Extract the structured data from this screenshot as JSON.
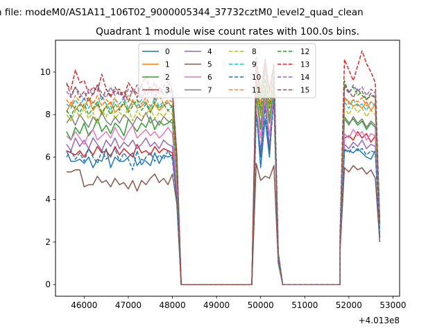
{
  "figure": {
    "suptitle": "n file: modeM0/AS1A11_106T02_9000005344_37732cztM0_level2_quad_clean"
  },
  "chart_data": {
    "type": "line",
    "title": "Quadrant 1 module wise count rates with 100.0s bins.",
    "xlabel": "",
    "ylabel": "",
    "x_offset_label": "+4.013e8",
    "xlim": [
      45350,
      53150
    ],
    "ylim": [
      -0.55,
      11.5
    ],
    "x_ticks": [
      46000,
      47000,
      48000,
      49000,
      50000,
      51000,
      52000,
      53000
    ],
    "y_ticks": [
      0,
      2,
      4,
      6,
      8,
      10
    ],
    "grid": false,
    "legend": {
      "placement": "top-center",
      "ncol": 4
    },
    "segments": [
      {
        "x0": 45600,
        "n": 26
      },
      {
        "x0": 48200,
        "n": 22
      },
      {
        "x0": 50400,
        "n": 15
      },
      {
        "x0": 51800,
        "n": 10
      }
    ],
    "x_step": 100,
    "series": [
      {
        "name": "0",
        "color": "#1f77b4",
        "dash": "solid",
        "values": [
          6.3,
          5.8,
          5.8,
          5.9,
          5.7,
          6.0,
          5.5,
          5.9,
          5.8,
          6.4,
          5.5,
          6.0,
          5.8,
          5.8,
          6.0,
          6.2,
          5.6,
          5.9,
          5.8,
          5.6,
          6.2,
          5.7,
          6.1,
          6.0,
          6.1,
          4.0,
          0,
          0,
          0,
          0,
          0,
          0,
          0,
          0,
          0,
          0,
          0,
          0,
          0,
          0,
          0,
          0,
          0,
          8.4,
          5.5,
          7.8,
          6.0,
          9.2,
          1.2,
          0,
          0,
          0,
          0,
          0,
          0,
          0,
          0,
          0,
          0,
          0,
          0,
          0,
          0,
          1.8,
          6.3,
          6.3,
          6.2,
          6.4,
          6.2,
          6.0,
          5.9,
          6.3,
          2.3
        ]
      },
      {
        "name": "1",
        "color": "#ff7f0e",
        "dash": "solid",
        "values": [
          8.1,
          8.6,
          8.2,
          8.5,
          8.3,
          8.8,
          8.2,
          8.5,
          8.0,
          8.4,
          8.6,
          8.1,
          8.3,
          8.5,
          8.2,
          8.7,
          8.3,
          8.4,
          8.6,
          8.1,
          8.5,
          8.2,
          8.4,
          8.6,
          8.3,
          5.5,
          0,
          0,
          0,
          0,
          0,
          0,
          0,
          0,
          0,
          0,
          0,
          0,
          0,
          0,
          0,
          0,
          0,
          9.8,
          8.1,
          10.2,
          8.4,
          10.0,
          1.4,
          0,
          0,
          0,
          0,
          0,
          0,
          0,
          0,
          0,
          0,
          0,
          0,
          0,
          0,
          2.2,
          8.8,
          8.6,
          8.4,
          8.5,
          8.3,
          8.6,
          8.2,
          8.5,
          2.9
        ]
      },
      {
        "name": "2",
        "color": "#2ca02c",
        "dash": "solid",
        "values": [
          7.2,
          6.8,
          7.4,
          7.1,
          7.6,
          7.0,
          7.3,
          7.8,
          7.2,
          7.5,
          7.1,
          7.6,
          7.4,
          7.0,
          7.8,
          7.5,
          7.2,
          7.6,
          7.4,
          7.9,
          7.3,
          7.7,
          7.5,
          7.6,
          7.8,
          5.0,
          0,
          0,
          0,
          0,
          0,
          0,
          0,
          0,
          0,
          0,
          0,
          0,
          0,
          0,
          0,
          0,
          0,
          8.9,
          7.3,
          9.1,
          7.6,
          9.3,
          1.3,
          0,
          0,
          0,
          0,
          0,
          0,
          0,
          0,
          0,
          0,
          0,
          0,
          0,
          0,
          2.0,
          7.9,
          7.6,
          7.8,
          7.5,
          7.7,
          7.3,
          7.6,
          7.4,
          2.5
        ]
      },
      {
        "name": "3",
        "color": "#d62728",
        "dash": "solid",
        "values": [
          6.3,
          6.2,
          6.1,
          6.3,
          6.0,
          6.4,
          6.1,
          6.5,
          6.2,
          6.3,
          6.0,
          6.5,
          6.1,
          6.4,
          6.2,
          6.0,
          6.6,
          6.2,
          6.3,
          6.1,
          6.5,
          6.2,
          6.4,
          6.3,
          6.2,
          4.1,
          0,
          0,
          0,
          0,
          0,
          0,
          0,
          0,
          0,
          0,
          0,
          0,
          0,
          0,
          0,
          0,
          0,
          8.2,
          6.1,
          8.6,
          6.3,
          9.0,
          1.2,
          0,
          0,
          0,
          0,
          0,
          0,
          0,
          0,
          0,
          0,
          0,
          0,
          0,
          0,
          1.9,
          6.9,
          7.0,
          6.8,
          7.2,
          6.9,
          7.1,
          6.7,
          7.0,
          2.2
        ]
      },
      {
        "name": "4",
        "color": "#9467bd",
        "dash": "solid",
        "values": [
          6.6,
          6.3,
          6.9,
          6.5,
          6.8,
          6.4,
          6.9,
          6.6,
          6.3,
          6.8,
          6.5,
          6.9,
          6.4,
          6.7,
          6.5,
          6.8,
          6.4,
          6.6,
          6.9,
          6.5,
          6.7,
          6.4,
          6.8,
          6.6,
          6.5,
          4.3,
          0,
          0,
          0,
          0,
          0,
          0,
          0,
          0,
          0,
          0,
          0,
          0,
          0,
          0,
          0,
          0,
          0,
          8.1,
          6.3,
          8.5,
          6.5,
          8.8,
          1.1,
          0,
          0,
          0,
          0,
          0,
          0,
          0,
          0,
          0,
          0,
          0,
          0,
          0,
          0,
          1.8,
          6.6,
          6.4,
          6.7,
          6.5,
          6.8,
          6.4,
          6.6,
          6.5,
          2.3
        ]
      },
      {
        "name": "5",
        "color": "#8c564b",
        "dash": "solid",
        "values": [
          5.3,
          5.3,
          5.4,
          5.4,
          4.6,
          4.7,
          4.7,
          5.1,
          4.8,
          4.9,
          4.6,
          5.0,
          4.7,
          4.8,
          4.5,
          4.9,
          4.4,
          4.9,
          4.7,
          5.0,
          5.2,
          4.8,
          5.0,
          4.7,
          5.2,
          3.8,
          0,
          0,
          0,
          0,
          0,
          0,
          0,
          0,
          0,
          0,
          0,
          0,
          0,
          0,
          0,
          0,
          0,
          5.7,
          4.9,
          5.1,
          5.0,
          5.6,
          1.0,
          0,
          0,
          0,
          0,
          0,
          0,
          0,
          0,
          0,
          0,
          0,
          0,
          0,
          0,
          1.6,
          5.5,
          5.3,
          5.6,
          5.4,
          5.5,
          5.2,
          5.4,
          5.0,
          2.0
        ]
      },
      {
        "name": "6",
        "color": "#e377c2",
        "dash": "solid",
        "values": [
          7.0,
          6.8,
          7.2,
          6.9,
          6.6,
          7.1,
          7.3,
          6.8,
          7.0,
          7.2,
          6.9,
          7.4,
          7.0,
          6.8,
          7.2,
          7.5,
          6.9,
          7.1,
          7.3,
          7.0,
          7.2,
          6.9,
          7.1,
          7.4,
          7.1,
          4.7,
          0,
          0,
          0,
          0,
          0,
          0,
          0,
          0,
          0,
          0,
          0,
          0,
          0,
          0,
          0,
          0,
          0,
          8.3,
          6.9,
          8.8,
          7.0,
          9.0,
          1.2,
          0,
          0,
          0,
          0,
          0,
          0,
          0,
          0,
          0,
          0,
          0,
          0,
          0,
          0,
          1.9,
          7.1,
          6.9,
          7.3,
          7.0,
          7.2,
          6.8,
          7.1,
          7.0,
          2.4
        ]
      },
      {
        "name": "7",
        "color": "#7f7f7f",
        "dash": "solid",
        "values": [
          7.6,
          7.9,
          7.5,
          8.0,
          7.7,
          7.4,
          7.9,
          7.6,
          8.1,
          7.7,
          7.5,
          7.9,
          7.6,
          8.0,
          7.8,
          7.5,
          7.9,
          7.7,
          8.1,
          7.6,
          7.8,
          7.5,
          7.9,
          7.7,
          7.6,
          5.1,
          0,
          0,
          0,
          0,
          0,
          0,
          0,
          0,
          0,
          0,
          0,
          0,
          0,
          0,
          0,
          0,
          0,
          9.0,
          7.5,
          9.3,
          7.8,
          9.4,
          1.3,
          0,
          0,
          0,
          0,
          0,
          0,
          0,
          0,
          0,
          0,
          0,
          0,
          0,
          0,
          2.1,
          7.8,
          7.5,
          7.9,
          7.6,
          7.8,
          7.4,
          7.7,
          7.5,
          2.6
        ]
      },
      {
        "name": "8",
        "color": "#bcbd22",
        "dash": "dashed",
        "values": [
          8.0,
          7.7,
          8.2,
          7.9,
          8.3,
          7.8,
          8.1,
          7.6,
          8.2,
          7.9,
          8.4,
          7.8,
          8.1,
          7.9,
          8.3,
          7.7,
          8.2,
          7.9,
          8.0,
          8.3,
          7.8,
          8.1,
          7.9,
          8.2,
          8.0,
          5.3,
          0,
          0,
          0,
          0,
          0,
          0,
          0,
          0,
          0,
          0,
          0,
          0,
          0,
          0,
          0,
          0,
          0,
          9.3,
          7.9,
          9.6,
          8.1,
          9.5,
          1.3,
          0,
          0,
          0,
          0,
          0,
          0,
          0,
          0,
          0,
          0,
          0,
          0,
          0,
          0,
          2.1,
          8.3,
          8.0,
          8.4,
          8.1,
          8.3,
          7.9,
          8.2,
          8.0,
          2.7
        ]
      },
      {
        "name": "9",
        "color": "#17becf",
        "dash": "dashed",
        "values": [
          8.5,
          8.3,
          8.7,
          8.4,
          8.8,
          8.3,
          8.6,
          8.4,
          8.9,
          8.5,
          8.2,
          8.7,
          8.5,
          8.8,
          8.3,
          8.6,
          8.4,
          8.7,
          8.5,
          8.3,
          8.8,
          8.4,
          8.6,
          8.5,
          8.4,
          5.6,
          0,
          0,
          0,
          0,
          0,
          0,
          0,
          0,
          0,
          0,
          0,
          0,
          0,
          0,
          0,
          0,
          0,
          9.6,
          8.3,
          10.0,
          8.5,
          9.8,
          1.4,
          0,
          0,
          0,
          0,
          0,
          0,
          0,
          0,
          0,
          0,
          0,
          0,
          0,
          0,
          2.2,
          8.6,
          8.3,
          8.7,
          8.4,
          8.5,
          8.2,
          8.6,
          8.4,
          2.8
        ]
      },
      {
        "name": "10",
        "color": "#1f77b4",
        "dash": "dashed",
        "values": [
          6.0,
          6.3,
          5.9,
          6.2,
          5.8,
          6.4,
          6.0,
          5.7,
          6.3,
          5.9,
          6.1,
          6.4,
          5.8,
          6.2,
          5.9,
          5.4,
          6.3,
          5.6,
          6.0,
          6.2,
          5.8,
          6.1,
          5.9,
          6.3,
          5.9,
          4.0,
          0,
          0,
          0,
          0,
          0,
          0,
          0,
          0,
          0,
          0,
          0,
          0,
          0,
          0,
          0,
          0,
          0,
          8.0,
          6.0,
          8.4,
          6.2,
          8.7,
          1.1,
          0,
          0,
          0,
          0,
          0,
          0,
          0,
          0,
          0,
          0,
          0,
          0,
          0,
          0,
          1.8,
          6.4,
          6.2,
          6.5,
          6.3,
          6.4,
          6.1,
          6.3,
          6.2,
          2.2
        ]
      },
      {
        "name": "11",
        "color": "#ff7f0e",
        "dash": "dashed",
        "values": [
          8.7,
          8.4,
          8.9,
          8.6,
          8.3,
          8.8,
          8.5,
          8.9,
          8.4,
          8.7,
          8.5,
          8.8,
          8.3,
          8.6,
          8.9,
          8.4,
          8.7,
          8.5,
          8.8,
          8.4,
          8.6,
          8.9,
          8.5,
          8.7,
          8.6,
          5.7,
          0,
          0,
          0,
          0,
          0,
          0,
          0,
          0,
          0,
          0,
          0,
          0,
          0,
          0,
          0,
          0,
          0,
          9.9,
          8.4,
          10.3,
          8.6,
          10.1,
          1.4,
          0,
          0,
          0,
          0,
          0,
          0,
          0,
          0,
          0,
          0,
          0,
          0,
          0,
          0,
          2.2,
          8.8,
          8.5,
          8.7,
          8.6,
          8.8,
          8.4,
          8.6,
          8.5,
          2.9
        ]
      },
      {
        "name": "12",
        "color": "#2ca02c",
        "dash": "dashed",
        "values": [
          8.2,
          7.9,
          8.4,
          8.1,
          8.5,
          8.0,
          8.3,
          8.6,
          8.1,
          8.4,
          8.0,
          8.5,
          8.2,
          8.6,
          8.1,
          8.4,
          8.7,
          8.2,
          8.5,
          8.1,
          8.6,
          8.3,
          8.5,
          8.2,
          8.4,
          5.5,
          0,
          0,
          0,
          0,
          0,
          0,
          0,
          0,
          0,
          0,
          0,
          0,
          0,
          0,
          0,
          0,
          0,
          9.4,
          8.1,
          9.7,
          8.3,
          9.6,
          1.4,
          0,
          0,
          0,
          0,
          0,
          0,
          0,
          0,
          0,
          0,
          0,
          0,
          0,
          0,
          2.2,
          9.6,
          9.0,
          9.3,
          8.9,
          9.1,
          8.7,
          8.9,
          8.8,
          2.9
        ]
      },
      {
        "name": "13",
        "color": "#d62728",
        "dash": "dashed",
        "values": [
          9.4,
          9.2,
          10.1,
          9.5,
          9.6,
          9.0,
          9.3,
          9.1,
          9.9,
          9.2,
          8.9,
          9.1,
          9.2,
          8.8,
          9.5,
          9.2,
          9.0,
          9.4,
          9.8,
          9.1,
          9.5,
          9.0,
          9.3,
          9.6,
          9.1,
          6.2,
          0,
          0,
          0,
          0,
          0,
          0,
          0,
          0,
          0,
          0,
          0,
          0,
          0,
          0,
          0,
          0,
          0,
          10.7,
          9.0,
          10.6,
          9.2,
          10.3,
          1.5,
          0,
          0,
          0,
          0,
          0,
          0,
          0,
          0,
          0,
          0,
          0,
          0,
          0,
          0,
          2.4,
          10.6,
          10.1,
          9.6,
          10.3,
          11.0,
          10.4,
          10.0,
          9.5,
          3.0
        ]
      },
      {
        "name": "14",
        "color": "#9467bd",
        "dash": "dashed",
        "values": [
          9.1,
          8.8,
          9.3,
          9.0,
          8.7,
          9.2,
          8.9,
          9.4,
          9.0,
          8.8,
          9.3,
          8.9,
          9.1,
          8.7,
          9.2,
          9.0,
          9.4,
          8.8,
          9.1,
          9.3,
          8.9,
          9.2,
          9.0,
          9.3,
          9.0,
          6.0,
          0,
          0,
          0,
          0,
          0,
          0,
          0,
          0,
          0,
          0,
          0,
          0,
          0,
          0,
          0,
          0,
          0,
          10.4,
          8.8,
          10.5,
          9.0,
          10.2,
          1.5,
          0,
          0,
          0,
          0,
          0,
          0,
          0,
          0,
          0,
          0,
          0,
          0,
          0,
          0,
          2.3,
          9.3,
          9.0,
          9.4,
          9.1,
          9.3,
          8.9,
          9.2,
          9.0,
          2.9
        ]
      },
      {
        "name": "15",
        "color": "#8c564b",
        "dash": "dashed",
        "values": [
          9.5,
          8.9,
          9.3,
          8.8,
          9.1,
          8.6,
          9.0,
          9.4,
          8.7,
          9.2,
          8.8,
          9.3,
          8.9,
          9.1,
          8.6,
          9.2,
          8.8,
          9.4,
          8.9,
          9.1,
          8.7,
          9.3,
          8.9,
          9.0,
          9.2,
          6.1,
          0,
          0,
          0,
          0,
          0,
          0,
          0,
          0,
          0,
          0,
          0,
          0,
          0,
          0,
          0,
          0,
          0,
          10.3,
          8.9,
          10.5,
          9.1,
          10.4,
          1.5,
          0,
          0,
          0,
          0,
          0,
          0,
          0,
          0,
          0,
          0,
          0,
          0,
          0,
          0,
          2.3,
          9.4,
          9.1,
          8.8,
          9.2,
          8.9,
          8.7,
          9.0,
          8.8,
          2.8
        ]
      }
    ]
  }
}
